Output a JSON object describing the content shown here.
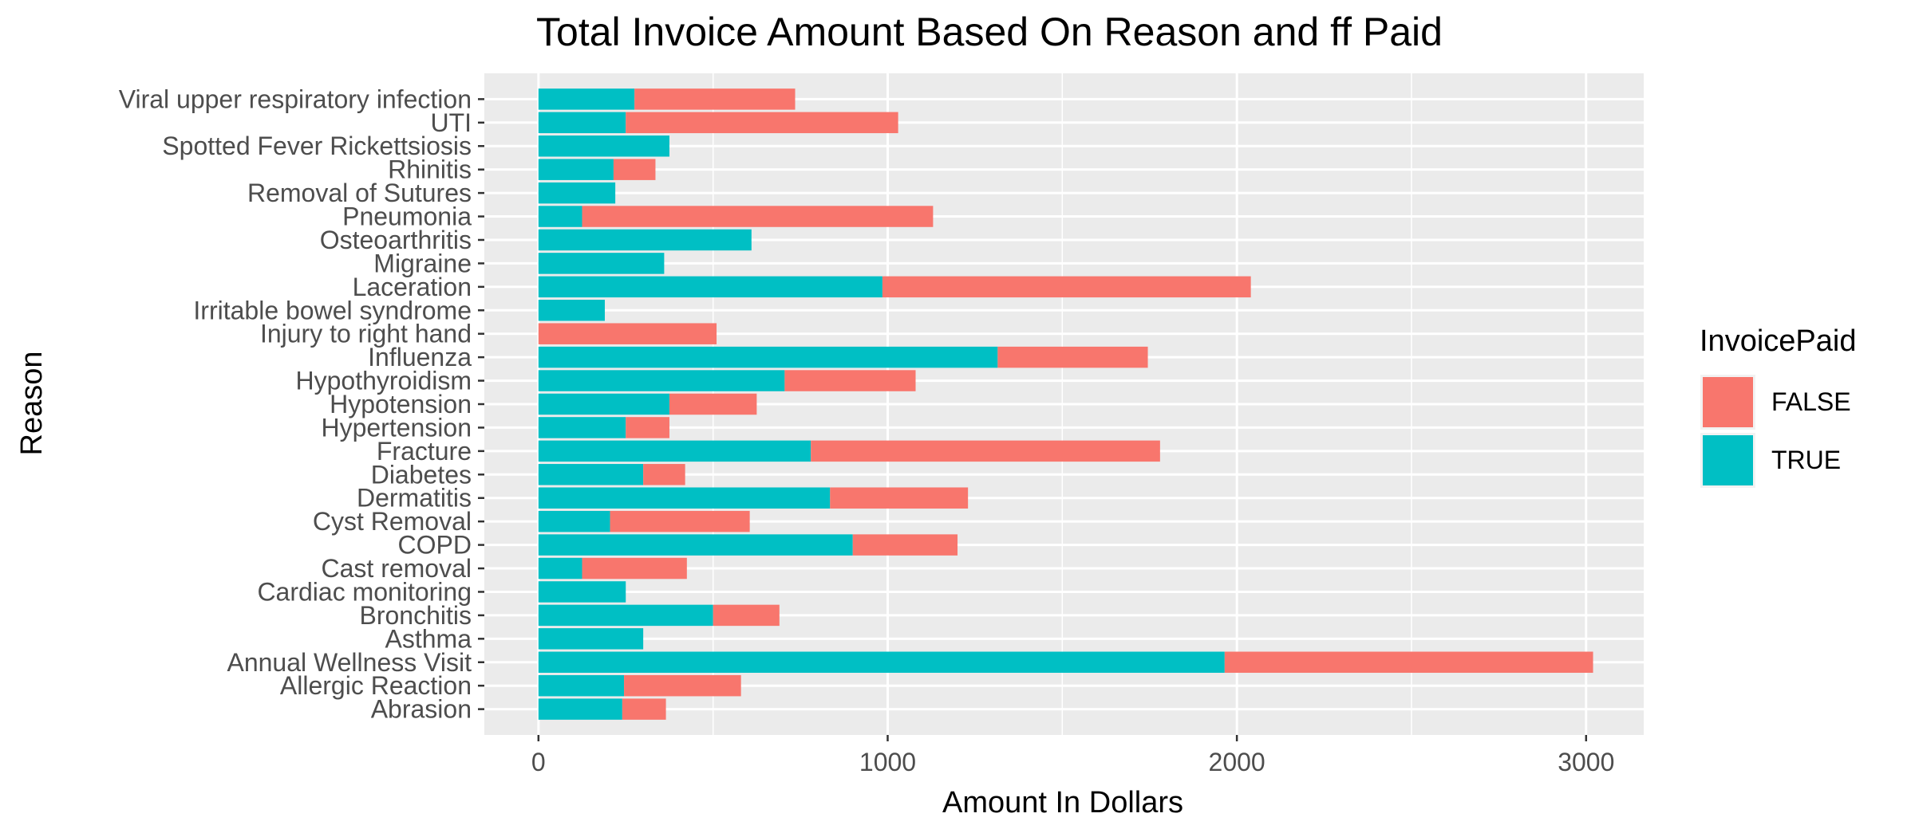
{
  "chart_data": {
    "type": "bar",
    "orientation": "horizontal",
    "stacked": true,
    "title": "Total Invoice Amount Based On Reason and ff Paid",
    "xlabel": "Amount In Dollars",
    "ylabel": "Reason",
    "xlim": [
      -155,
      3165
    ],
    "xticks": [
      0,
      1000,
      2000,
      3000
    ],
    "grid": true,
    "legend": {
      "title": "InvoicePaid",
      "position": "right",
      "entries": [
        {
          "label": "FALSE",
          "color": "#F8766D"
        },
        {
          "label": "TRUE",
          "color": "#00BFC4"
        }
      ]
    },
    "categories": [
      "Abrasion",
      "Allergic Reaction",
      "Annual Wellness Visit",
      "Asthma",
      "Bronchitis",
      "Cardiac monitoring",
      "Cast removal",
      "COPD",
      "Cyst Removal",
      "Dermatitis",
      "Diabetes",
      "Fracture",
      "Hypertension",
      "Hypotension",
      "Hypothyroidism",
      "Influenza",
      "Injury to right hand",
      "Irritable bowel syndrome",
      "Laceration",
      "Migraine",
      "Osteoarthritis",
      "Pneumonia",
      "Removal of Sutures",
      "Rhinitis",
      "Spotted Fever Rickettsiosis",
      "UTI",
      "Viral upper respiratory infection"
    ],
    "series": [
      {
        "name": "TRUE",
        "color": "#00BFC4",
        "values": [
          240,
          245,
          1965,
          300,
          500,
          250,
          125,
          900,
          205,
          835,
          300,
          780,
          250,
          375,
          705,
          1315,
          0,
          190,
          985,
          360,
          610,
          125,
          220,
          215,
          375,
          250,
          275
        ]
      },
      {
        "name": "FALSE",
        "color": "#F8766D",
        "values": [
          125,
          335,
          1055,
          0,
          190,
          0,
          300,
          300,
          400,
          395,
          120,
          1000,
          125,
          250,
          375,
          430,
          510,
          0,
          1055,
          0,
          0,
          1005,
          0,
          120,
          0,
          780,
          460
        ]
      }
    ]
  }
}
